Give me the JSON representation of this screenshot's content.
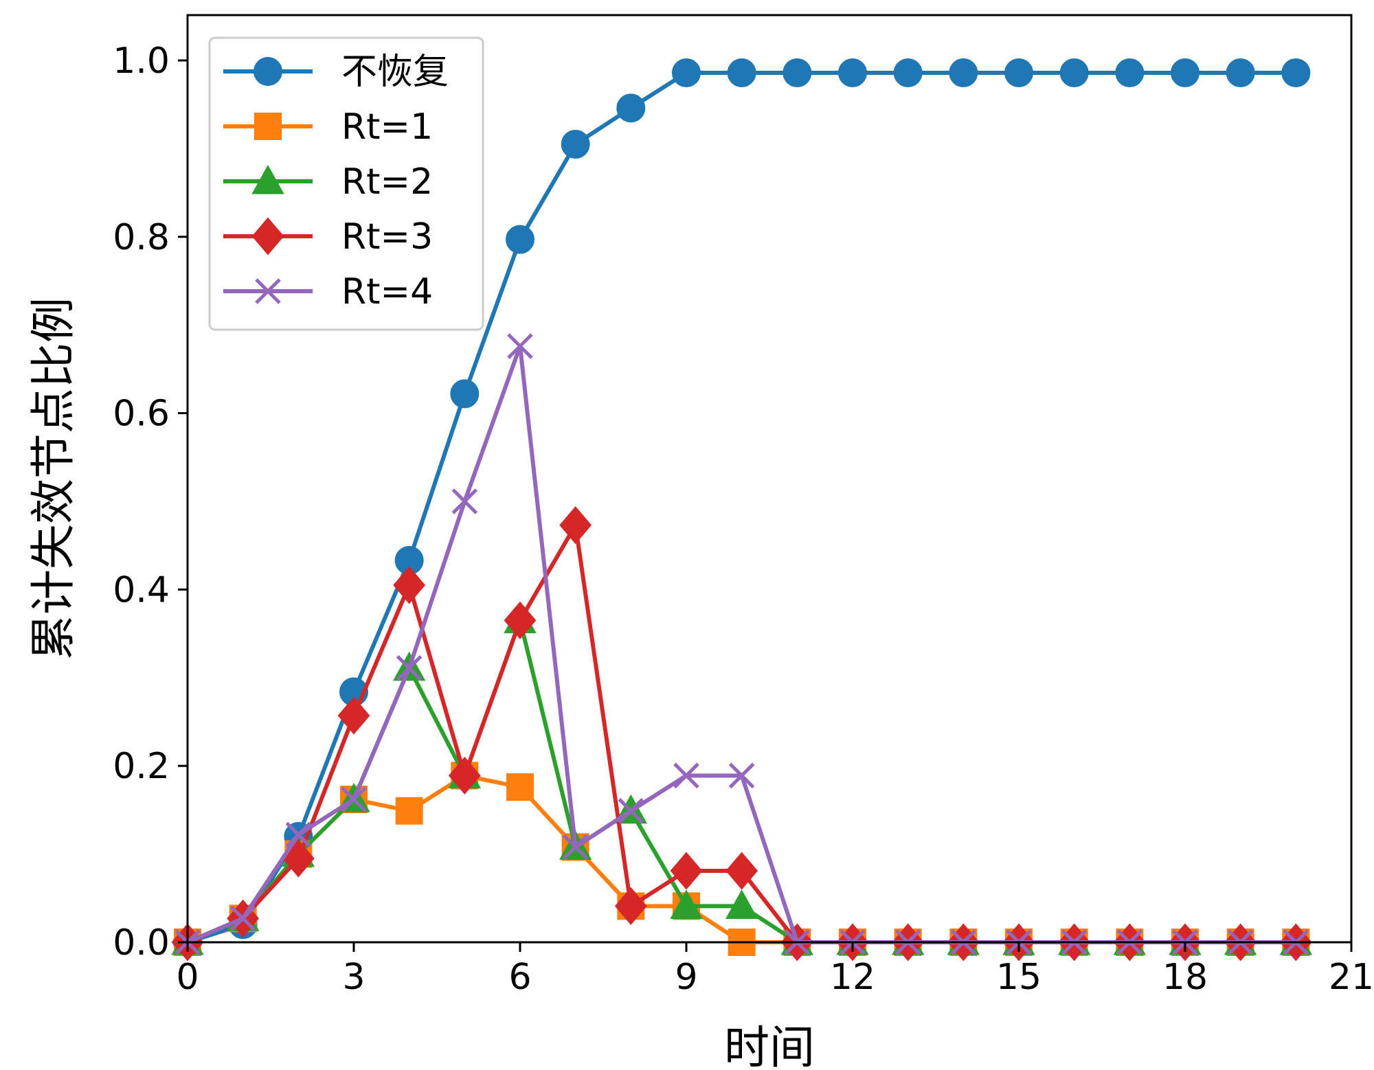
{
  "chart_data": {
    "type": "line",
    "title": "",
    "xlabel": "时间",
    "ylabel": "累计失效节点比例",
    "xlim": [
      0,
      21
    ],
    "ylim": [
      0,
      1.05
    ],
    "xticks": [
      0,
      3,
      6,
      9,
      12,
      15,
      18,
      21
    ],
    "xtick_labels": [
      "0",
      "3",
      "6",
      "9",
      "12",
      "15",
      "18",
      "21"
    ],
    "yticks": [
      0.0,
      0.2,
      0.4,
      0.6,
      0.8,
      1.0
    ],
    "ytick_labels": [
      "0.0",
      "0.2",
      "0.4",
      "0.6",
      "0.8",
      "1.0"
    ],
    "grid": false,
    "legend_position": "top-left",
    "x": [
      0,
      1,
      2,
      3,
      4,
      5,
      6,
      7,
      8,
      9,
      10,
      11,
      12,
      13,
      14,
      15,
      16,
      17,
      18,
      19,
      20
    ],
    "series": [
      {
        "name": "不恢复",
        "color": "#1f77b4",
        "marker": "circle",
        "values": [
          0.0,
          0.02,
          0.12,
          0.284,
          0.433,
          0.622,
          0.797,
          0.905,
          0.946,
          0.986,
          0.986,
          0.986,
          0.986,
          0.986,
          0.986,
          0.986,
          0.986,
          0.986,
          0.986,
          0.986,
          0.986
        ]
      },
      {
        "name": "Rt=1",
        "color": "#ff7f0e",
        "marker": "square",
        "values": [
          0.0,
          0.027,
          0.1,
          0.162,
          0.149,
          0.189,
          0.176,
          0.108,
          0.041,
          0.041,
          0.0,
          0.0,
          0.0,
          0.0,
          0.0,
          0.0,
          0.0,
          0.0,
          0.0,
          0.0,
          0.0
        ]
      },
      {
        "name": "Rt=2",
        "color": "#2ca02c",
        "marker": "triangle",
        "values": [
          0.0,
          0.027,
          0.1,
          0.162,
          0.311,
          0.189,
          0.365,
          0.108,
          0.149,
          0.041,
          0.041,
          0.0,
          0.0,
          0.0,
          0.0,
          0.0,
          0.0,
          0.0,
          0.0,
          0.0,
          0.0
        ]
      },
      {
        "name": "Rt=3",
        "color": "#d62728",
        "marker": "diamond",
        "values": [
          0.0,
          0.027,
          0.095,
          0.257,
          0.405,
          0.189,
          0.365,
          0.473,
          0.041,
          0.081,
          0.081,
          0.0,
          0.0,
          0.0,
          0.0,
          0.0,
          0.0,
          0.0,
          0.0,
          0.0,
          0.0
        ]
      },
      {
        "name": "Rt=4",
        "color": "#9467bd",
        "marker": "x",
        "values": [
          0.0,
          0.027,
          0.122,
          0.162,
          0.311,
          0.5,
          0.676,
          0.108,
          0.149,
          0.189,
          0.189,
          0.0,
          0.0,
          0.0,
          0.0,
          0.0,
          0.0,
          0.0,
          0.0,
          0.0,
          0.0
        ]
      }
    ]
  }
}
